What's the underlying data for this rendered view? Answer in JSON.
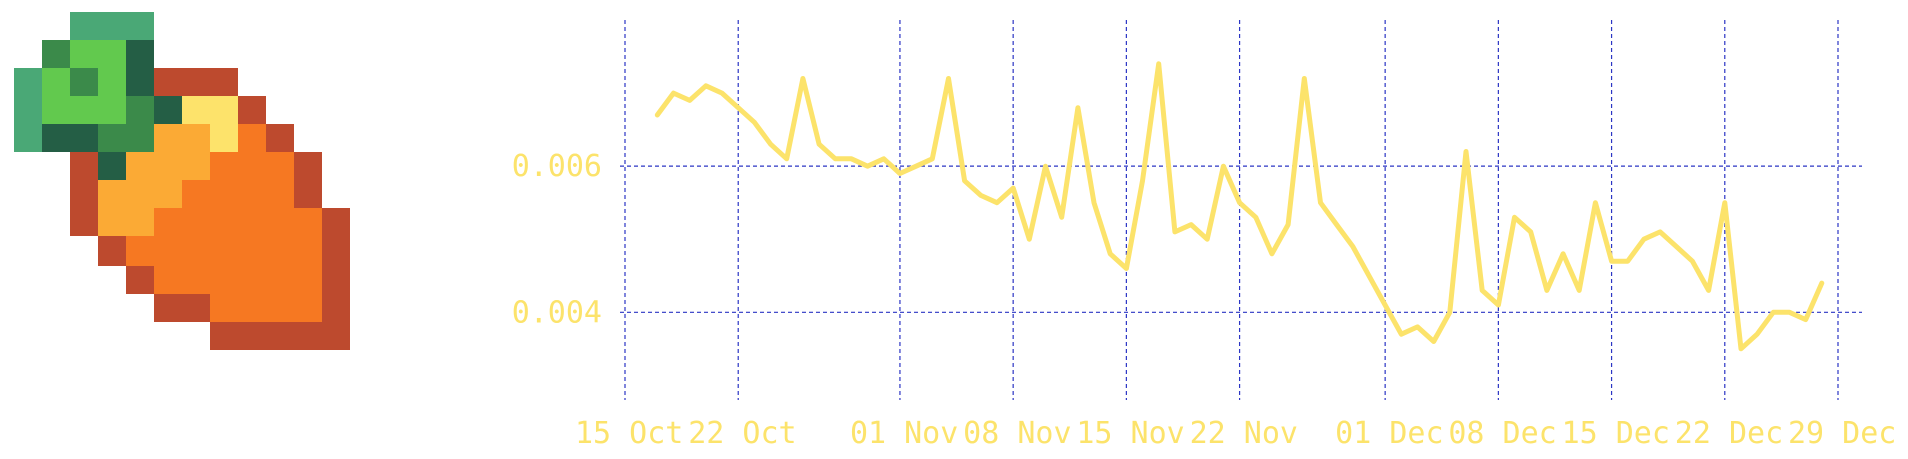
{
  "logo": {
    "name": "pixel-art-fruit-logo"
  },
  "colors": {
    "line": "#fce36b",
    "grid": "#2b35c4",
    "tick_text": "#fce36b"
  },
  "chart_data": {
    "type": "line",
    "title": "",
    "xlabel": "",
    "ylabel": "",
    "x_range": [
      "2021-10-15",
      "2021-12-29"
    ],
    "ylim": [
      0.0028,
      0.008
    ],
    "grid": true,
    "x_ticks": [
      "15 Oct",
      "22 Oct",
      "01 Nov",
      "08 Nov",
      "15 Nov",
      "22 Nov",
      "01 Dec",
      "08 Dec",
      "15 Dec",
      "22 Dec",
      "29 Dec"
    ],
    "x_tick_dates": [
      "2021-10-15",
      "2021-10-22",
      "2021-11-01",
      "2021-11-08",
      "2021-11-15",
      "2021-11-22",
      "2021-12-01",
      "2021-12-08",
      "2021-12-15",
      "2021-12-22",
      "2021-12-29"
    ],
    "y_ticks": [
      "0.004",
      "0.006"
    ],
    "y_tick_values": [
      0.004,
      0.006
    ],
    "series": [
      {
        "x": [
          "2021-10-17",
          "2021-10-18",
          "2021-10-19",
          "2021-10-20",
          "2021-10-21",
          "2021-10-22",
          "2021-10-23",
          "2021-10-24",
          "2021-10-25",
          "2021-10-26",
          "2021-10-27",
          "2021-10-28",
          "2021-10-29",
          "2021-10-30",
          "2021-10-31",
          "2021-11-01",
          "2021-11-02",
          "2021-11-03",
          "2021-11-04",
          "2021-11-05",
          "2021-11-06",
          "2021-11-07",
          "2021-11-08",
          "2021-11-09",
          "2021-11-10",
          "2021-11-11",
          "2021-11-12",
          "2021-11-13",
          "2021-11-14",
          "2021-11-15",
          "2021-11-16",
          "2021-11-17",
          "2021-11-18",
          "2021-11-19",
          "2021-11-20",
          "2021-11-21",
          "2021-11-22",
          "2021-11-23",
          "2021-11-24",
          "2021-11-25",
          "2021-11-26",
          "2021-11-27",
          "2021-11-28",
          "2021-11-29",
          "2021-11-30",
          "2021-12-01",
          "2021-12-02",
          "2021-12-03",
          "2021-12-04",
          "2021-12-05",
          "2021-12-06",
          "2021-12-07",
          "2021-12-08",
          "2021-12-09",
          "2021-12-10",
          "2021-12-11",
          "2021-12-12",
          "2021-12-13",
          "2021-12-14",
          "2021-12-15",
          "2021-12-16",
          "2021-12-17",
          "2021-12-18",
          "2021-12-19",
          "2021-12-20",
          "2021-12-21",
          "2021-12-22",
          "2021-12-23",
          "2021-12-24",
          "2021-12-25",
          "2021-12-26",
          "2021-12-27",
          "2021-12-28"
        ],
        "values": [
          0.0067,
          0.007,
          0.0069,
          0.0071,
          0.007,
          0.0068,
          0.0066,
          0.0063,
          0.0061,
          0.0072,
          0.0063,
          0.0061,
          0.0061,
          0.006,
          0.0061,
          0.0059,
          0.006,
          0.0061,
          0.0072,
          0.0058,
          0.0056,
          0.0055,
          0.0057,
          0.005,
          0.006,
          0.0053,
          0.0068,
          0.0055,
          0.0048,
          0.0046,
          0.0058,
          0.0074,
          0.0051,
          0.0052,
          0.005,
          0.006,
          0.0055,
          0.0053,
          0.0048,
          0.0052,
          0.0072,
          0.0055,
          0.0052,
          0.0049,
          0.0045,
          0.0041,
          0.0037,
          0.0038,
          0.0036,
          0.004,
          0.0062,
          0.0043,
          0.0041,
          0.0053,
          0.0051,
          0.0043,
          0.0048,
          0.0043,
          0.0055,
          0.0047,
          0.0047,
          0.005,
          0.0051,
          0.0049,
          0.0047,
          0.0043,
          0.0055,
          0.0035,
          0.0037,
          0.004,
          0.004,
          0.0039,
          0.0044
        ]
      }
    ]
  }
}
